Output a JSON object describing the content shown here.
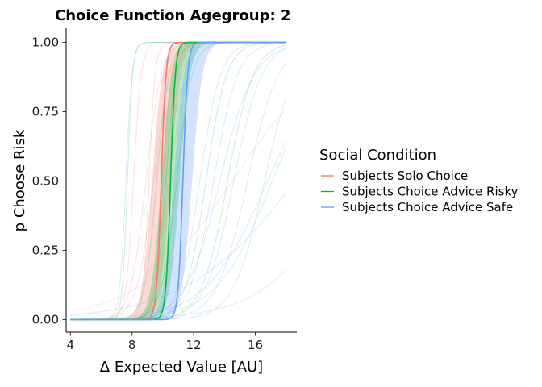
{
  "chart_data": {
    "type": "line",
    "title": "Choice Function Agegroup: 2",
    "xlabel": "Δ Expected Value [AU]",
    "ylabel": "p Choose Risk",
    "xlim": [
      4.0,
      18.0
    ],
    "ylim": [
      0.0,
      1.0
    ],
    "x_ticks": [
      4,
      8,
      12,
      16
    ],
    "x_tick_labels": [
      "4",
      "8",
      "12",
      "16"
    ],
    "y_ticks": [
      0.0,
      0.25,
      0.5,
      0.75,
      1.0
    ],
    "y_tick_labels": [
      "0.00",
      "0.25",
      "0.50",
      "0.75",
      "1.00"
    ],
    "grid": false,
    "legend": {
      "title": "Social Condition",
      "position": "right"
    },
    "series": [
      {
        "name": "Subjects Solo Choice",
        "color": "#F8766D",
        "threshold": 9.9,
        "slope": 6.5,
        "band_low_threshold": 9.3,
        "band_high_threshold": 10.5,
        "band_slope": 3.0,
        "individual_curves": [
          [
            8.1,
            4.0
          ],
          [
            8.9,
            2.0
          ],
          [
            9.4,
            1.8
          ],
          [
            10.0,
            3.5
          ],
          [
            10.6,
            3.0
          ],
          [
            9.1,
            5.0
          ]
        ]
      },
      {
        "name": "Subjects Choice Advice Risky",
        "color": "#00BA38",
        "threshold": 10.5,
        "slope": 6.5,
        "band_low_threshold": 9.9,
        "band_high_threshold": 11.1,
        "band_slope": 3.0,
        "individual_curves": [
          [
            7.7,
            6.0
          ],
          [
            9.6,
            2.5
          ],
          [
            10.2,
            3.0
          ],
          [
            10.9,
            2.0
          ],
          [
            12.8,
            1.5
          ],
          [
            14.2,
            1.2
          ]
        ]
      },
      {
        "name": "Subjects Choice Advice Safe",
        "color": "#619CFF",
        "threshold": 11.3,
        "slope": 6.5,
        "band_low_threshold": 10.7,
        "band_high_threshold": 11.9,
        "band_slope": 3.0,
        "individual_curves": [
          [
            7.6,
            5.0
          ],
          [
            12.4,
            1.5
          ],
          [
            13.3,
            1.3
          ],
          [
            14.6,
            1.1
          ],
          [
            15.5,
            1.0
          ],
          [
            16.6,
            1.0
          ],
          [
            13.7,
            0.9
          ],
          [
            16.8,
            0.5
          ],
          [
            18.6,
            0.28
          ]
        ]
      }
    ],
    "faint_extra_curves": [
      {
        "color": "#F8766D",
        "threshold": 14.5,
        "slope": 0.33
      },
      {
        "color": "#00BA38",
        "threshold": 17.1,
        "slope": 0.55
      },
      {
        "color": "#00BA38",
        "threshold": 22.0,
        "slope": 0.38
      }
    ]
  }
}
